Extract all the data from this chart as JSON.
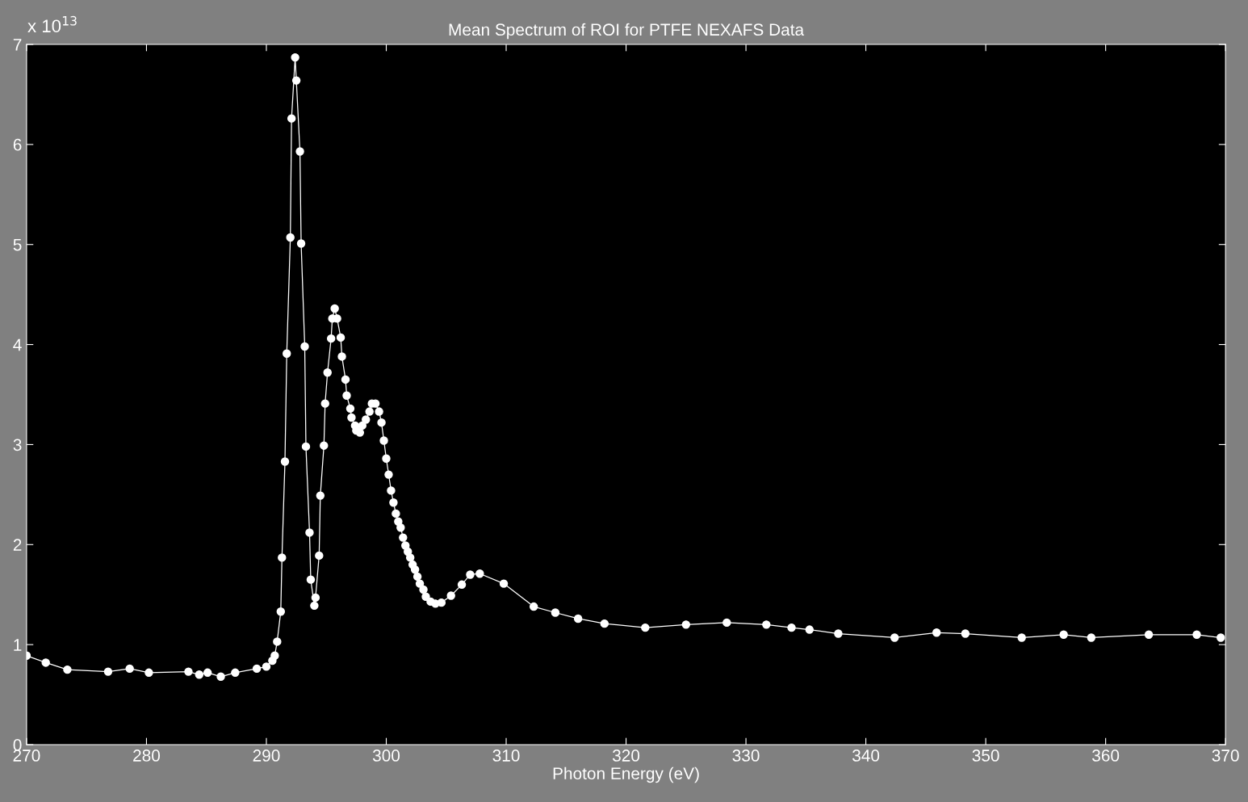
{
  "chart_data": {
    "type": "line",
    "title": "Mean Spectrum of ROI for PTFE NEXAFS Data",
    "xlabel": "Photon Energy (eV)",
    "annotations": [
      "x 10$^{13}$"
    ],
    "series": [
      {
        "color": "#ffffff",
        "x": [
          270.0,
          271.6,
          273.4,
          276.8,
          278.6,
          280.2,
          283.5,
          284.4,
          285.1,
          286.2,
          287.4,
          289.2,
          290.0,
          290.5,
          290.7,
          290.9,
          291.2,
          291.3,
          291.55,
          291.7,
          292.0,
          292.1,
          292.4,
          292.5,
          292.8,
          292.9,
          293.2,
          293.3,
          293.6,
          293.7,
          294.0,
          294.1,
          294.4,
          294.5,
          294.8,
          294.9,
          295.1,
          295.4,
          295.5,
          295.7,
          295.9,
          296.2,
          296.3,
          296.6,
          296.7,
          297.0,
          297.1,
          297.4,
          297.5,
          297.8,
          298.0,
          298.3,
          298.6,
          298.8,
          299.1,
          299.4,
          299.6,
          299.8,
          300.0,
          300.2,
          300.4,
          300.6,
          300.8,
          301.0,
          301.2,
          301.4,
          301.6,
          301.8,
          302.0,
          302.2,
          302.4,
          302.6,
          302.8,
          303.1,
          303.3,
          303.7,
          304.1,
          304.6,
          305.4,
          306.3,
          307.0,
          307.8,
          309.8,
          312.3,
          314.1,
          316.0,
          318.2,
          321.6,
          325.0,
          328.4,
          331.7,
          333.8,
          335.3,
          337.7,
          342.4,
          345.9,
          348.3,
          353.0,
          356.5,
          358.8,
          363.6,
          367.6,
          369.6
        ],
        "values": [
          0.89,
          0.82,
          0.75,
          0.73,
          0.76,
          0.72,
          0.73,
          0.7,
          0.72,
          0.68,
          0.72,
          0.76,
          0.78,
          0.84,
          0.89,
          1.03,
          1.33,
          1.87,
          2.83,
          3.91,
          5.07,
          6.26,
          6.87,
          6.64,
          5.93,
          5.01,
          3.98,
          2.98,
          2.12,
          1.65,
          1.39,
          1.47,
          1.89,
          2.49,
          2.99,
          3.41,
          3.72,
          4.06,
          4.26,
          4.36,
          4.26,
          4.07,
          3.88,
          3.65,
          3.49,
          3.36,
          3.27,
          3.19,
          3.14,
          3.12,
          3.19,
          3.25,
          3.33,
          3.41,
          3.41,
          3.33,
          3.22,
          3.04,
          2.86,
          2.7,
          2.54,
          2.42,
          2.31,
          2.23,
          2.17,
          2.07,
          1.99,
          1.93,
          1.87,
          1.8,
          1.75,
          1.68,
          1.61,
          1.55,
          1.48,
          1.43,
          1.41,
          1.42,
          1.49,
          1.6,
          1.7,
          1.71,
          1.61,
          1.38,
          1.32,
          1.26,
          1.21,
          1.17,
          1.2,
          1.22,
          1.2,
          1.17,
          1.15,
          1.11,
          1.07,
          1.12,
          1.11,
          1.07,
          1.1,
          1.07,
          1.1,
          1.1,
          1.07
        ]
      }
    ],
    "xlim": [
      270,
      370
    ],
    "ylim": [
      0,
      7
    ],
    "xticks": [
      270,
      280,
      290,
      300,
      310,
      320,
      330,
      340,
      350,
      360,
      370
    ],
    "yticks": [
      0,
      1,
      2,
      3,
      4,
      5,
      6,
      7
    ],
    "marker": "circle",
    "line_style": "solid",
    "grid": false,
    "legend": false
  }
}
